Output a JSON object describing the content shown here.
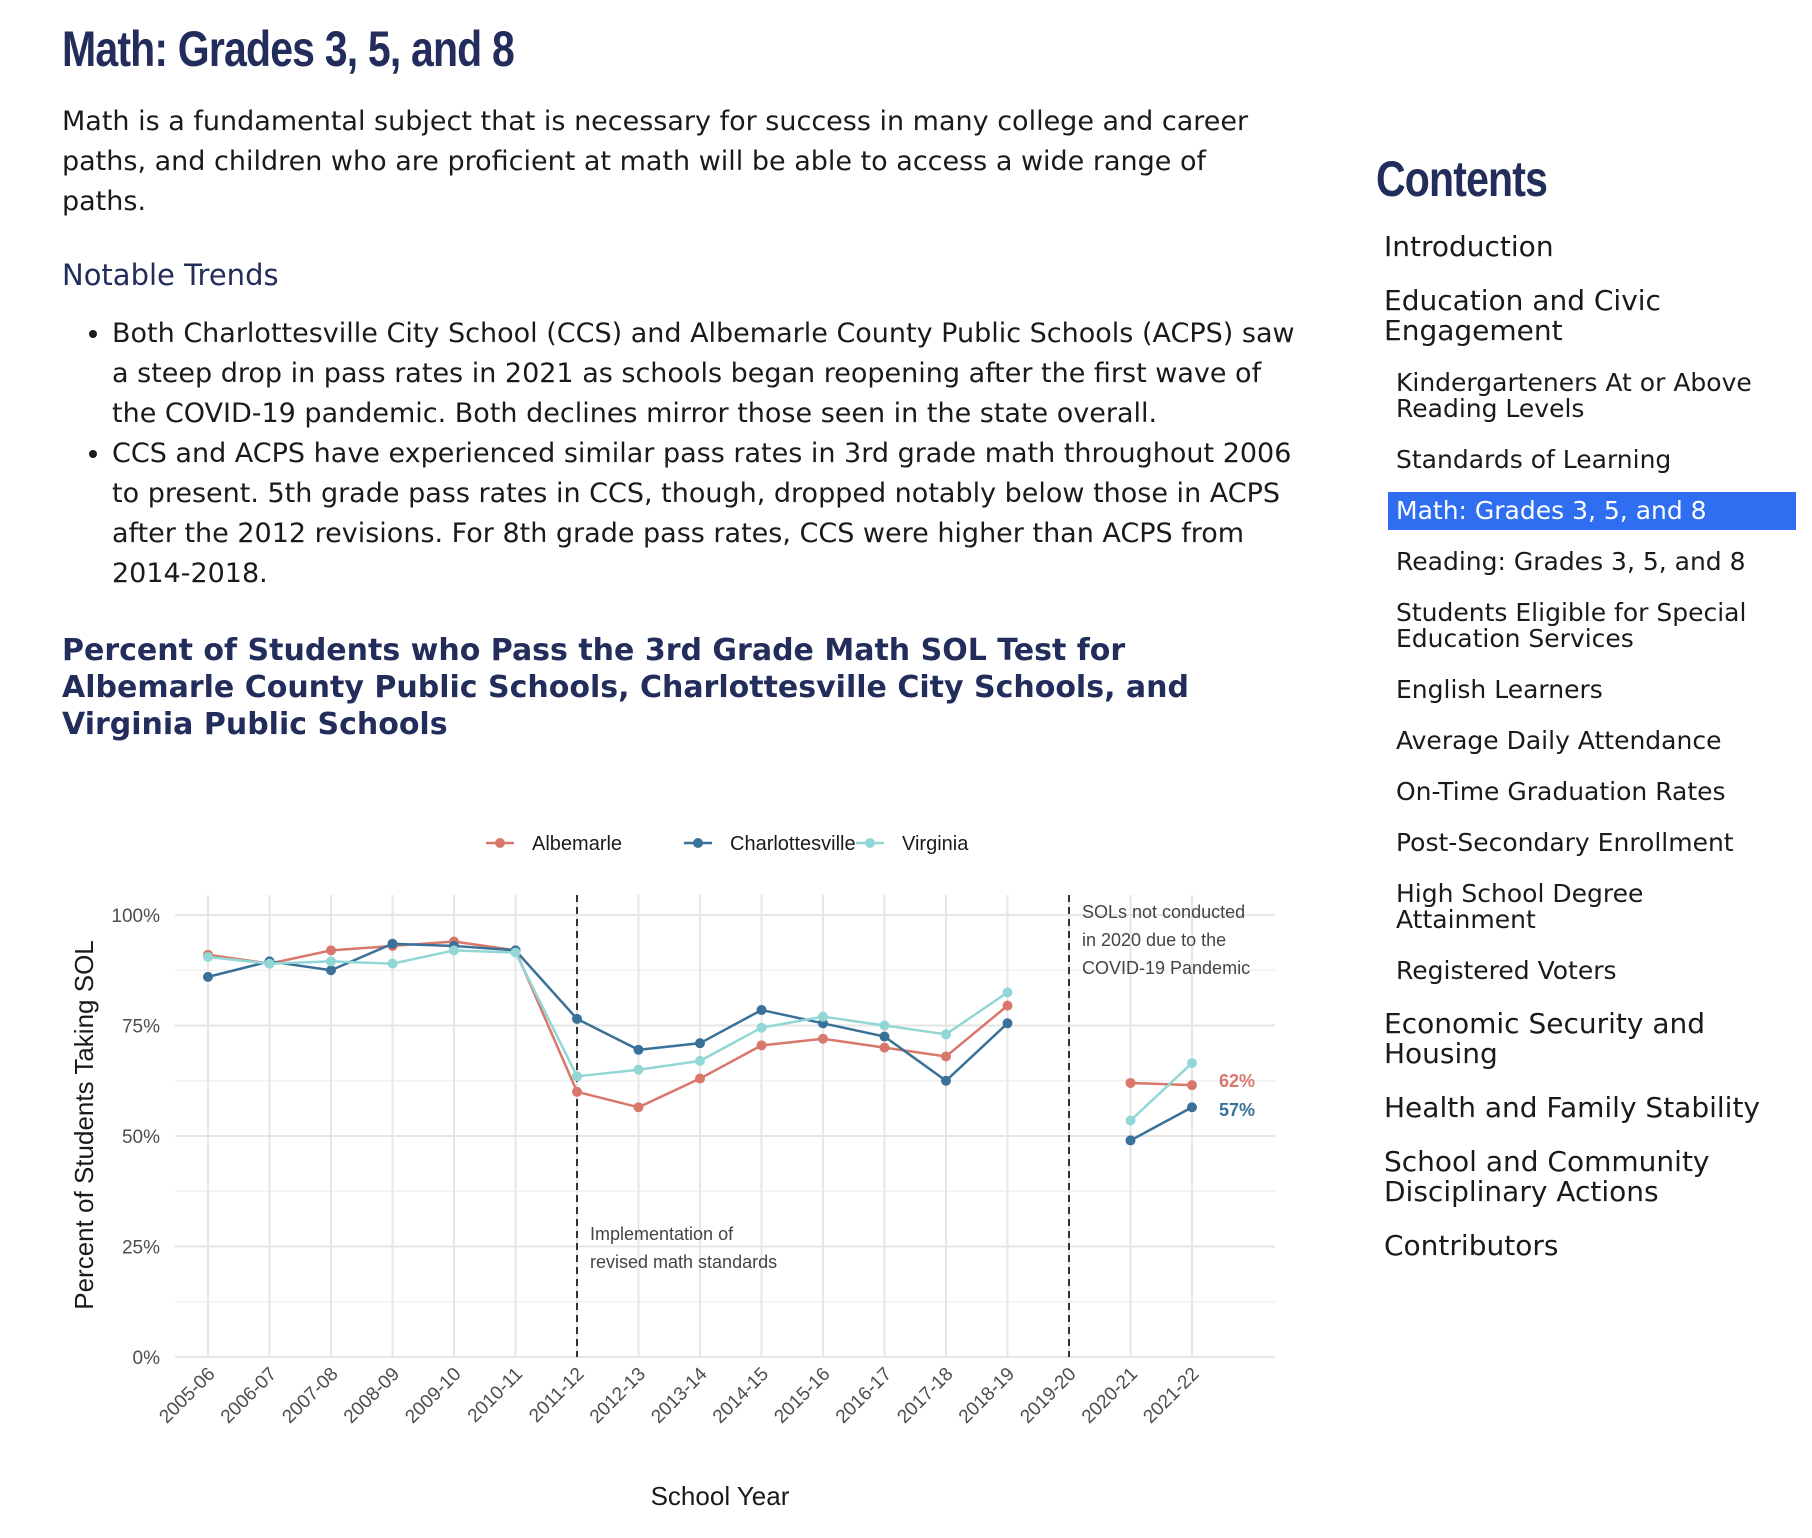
{
  "page": {
    "title": "Math: Grades 3, 5, and 8",
    "intro": "Math is a fundamental subject that is necessary for success in many college and career paths, and children who are proficient at math will be able to access a wide range of paths.",
    "trends_heading": "Notable Trends",
    "trends": [
      "Both Charlottesville City School (CCS) and Albemarle County Public Schools (ACPS) saw a steep drop in pass rates in 2021 as schools began reopening after the first wave of the COVID-19 pandemic. Both declines mirror those seen in the state overall.",
      "CCS and ACPS have experienced similar pass rates in 3rd grade math throughout 2006 to present. 5th grade pass rates in CCS, though, dropped notably below those in ACPS after the 2012 revisions. For 8th grade pass rates, CCS were higher than ACPS from 2014-2018."
    ],
    "chart_title": "Percent of Students who Pass the 3rd Grade Math SOL Test for Albemarle County Public Schools, Charlottesville City Schools, and Virginia Public Schools"
  },
  "sidebar": {
    "title": "Contents",
    "items": [
      {
        "label": "Introduction",
        "level": 1
      },
      {
        "label": "Education and Civic Engagement",
        "level": 1
      },
      {
        "label": "Kindergarteners At or Above Reading Levels",
        "level": 2
      },
      {
        "label": "Standards of Learning",
        "level": 2
      },
      {
        "label": "Math: Grades 3, 5, and 8",
        "level": 2,
        "active": true
      },
      {
        "label": "Reading: Grades 3, 5, and 8",
        "level": 2
      },
      {
        "label": "Students Eligible for Special Education Services",
        "level": 2
      },
      {
        "label": "English Learners",
        "level": 2
      },
      {
        "label": "Average Daily Attendance",
        "level": 2
      },
      {
        "label": "On-Time Graduation Rates",
        "level": 2
      },
      {
        "label": "Post-Secondary Enrollment",
        "level": 2
      },
      {
        "label": "High School Degree Attainment",
        "level": 2
      },
      {
        "label": "Registered Voters",
        "level": 2
      },
      {
        "label": "Economic Security and Housing",
        "level": 1
      },
      {
        "label": "Health and Family Stability",
        "level": 1
      },
      {
        "label": "School and Community Disciplinary Actions",
        "level": 1
      },
      {
        "label": "Contributors",
        "level": 1
      }
    ],
    "active_color": "#2f6ef1"
  },
  "chart_data": {
    "type": "line",
    "xlabel": "School Year",
    "ylabel": "Percent of Students Taking SOL",
    "ylim": [
      0,
      100
    ],
    "yticks": [
      0,
      25,
      50,
      75,
      100
    ],
    "ytick_labels": [
      "0%",
      "25%",
      "50%",
      "75%",
      "100%"
    ],
    "categories": [
      "2005-06",
      "2006-07",
      "2007-08",
      "2008-09",
      "2009-10",
      "2010-11",
      "2011-12",
      "2012-13",
      "2013-14",
      "2014-15",
      "2015-16",
      "2016-17",
      "2017-18",
      "2018-19",
      "2019-20",
      "2020-21",
      "2021-22"
    ],
    "grid": true,
    "legend_position": "top",
    "series": [
      {
        "name": "Albemarle",
        "color": "#d9776b",
        "values": [
          91,
          89,
          92,
          93,
          94,
          92,
          60,
          56.5,
          63,
          70.5,
          72,
          70,
          68,
          79.5,
          null,
          62,
          61.5
        ]
      },
      {
        "name": "Charlottesville",
        "color": "#3a7199",
        "values": [
          86,
          89.5,
          87.5,
          93.5,
          93,
          92,
          76.5,
          69.5,
          71,
          78.5,
          75.5,
          72.5,
          62.5,
          75.5,
          null,
          49,
          56.5
        ]
      },
      {
        "name": "Virginia",
        "color": "#93d6d6",
        "values": [
          90.5,
          89,
          89.5,
          89,
          92,
          91.5,
          63.5,
          65,
          67,
          74.5,
          77,
          75,
          73,
          82.5,
          null,
          53.5,
          66.5
        ]
      }
    ],
    "end_labels": [
      {
        "series": "Albemarle",
        "text": "62%",
        "color": "#d9776b"
      },
      {
        "series": "Charlottesville",
        "text": "57%",
        "color": "#3a7199"
      }
    ],
    "vlines": [
      {
        "at": "2011-12",
        "text_lines": [
          "Implementation of",
          "revised math standards"
        ]
      },
      {
        "at": "2019-20",
        "text_lines": [
          "SOLs not conducted",
          "in 2020 due to the",
          "COVID-19 Pandemic"
        ]
      }
    ]
  }
}
